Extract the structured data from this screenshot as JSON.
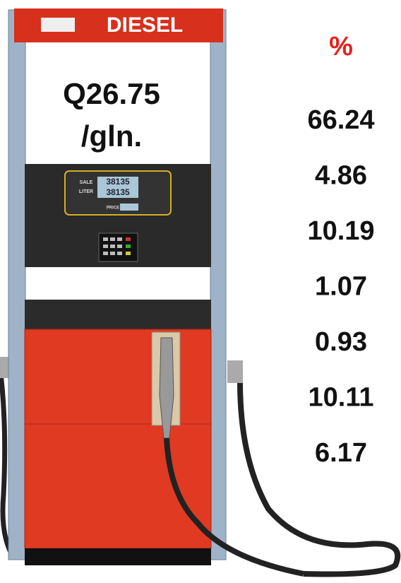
{
  "pump": {
    "brand": "DIESEL",
    "price": "Q26.75",
    "unit": "/gln.",
    "display": {
      "sale_label": "SALE",
      "liter_label": "LITER",
      "price_label": "PRICE",
      "sale": "38135",
      "liter": "38135"
    }
  },
  "percent_header": "%",
  "values": [
    "66.24",
    "4.86",
    "10.19",
    "1.07",
    "0.93",
    "10.11",
    "6.17"
  ]
}
